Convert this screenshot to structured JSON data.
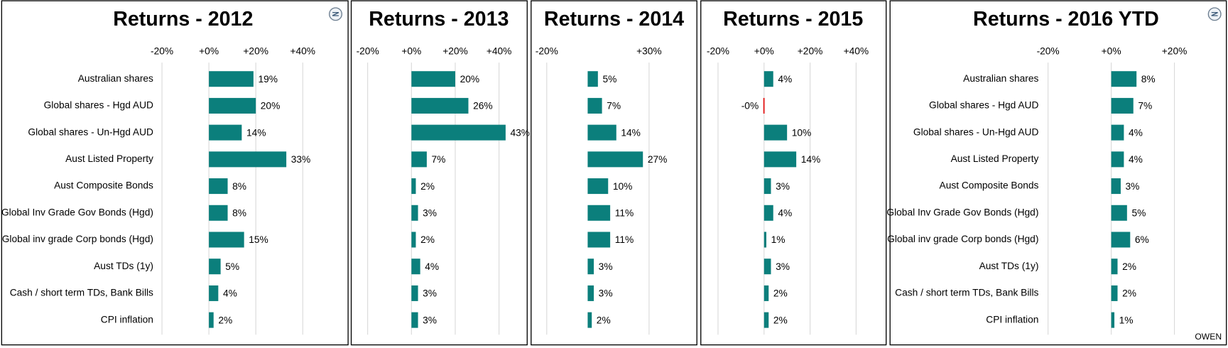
{
  "chart_data": [
    {
      "type": "bar",
      "title": "Returns - 2012",
      "color": "#0b7f7c",
      "negative_color": "#e00000",
      "grid": true,
      "categories": [
        "Australian shares",
        "Global shares - Hgd AUD",
        "Global shares - Un-Hgd AUD",
        "Aust Listed Property",
        "Aust Composite Bonds",
        "Global Inv Grade Gov Bonds (Hgd)",
        "Global inv grade Corp bonds (Hgd)",
        "Aust TDs (1y)",
        "Cash / short term TDs, Bank Bills",
        "CPI inflation"
      ],
      "values": [
        19,
        20,
        14,
        33,
        8,
        8,
        15,
        5,
        4,
        2
      ],
      "value_labels": [
        "19%",
        "20%",
        "14%",
        "33%",
        "8%",
        "8%",
        "15%",
        "5%",
        "4%",
        "2%"
      ],
      "xlim": [
        -20,
        50
      ],
      "xticks": [
        {
          "value": -20,
          "label": "-20%"
        },
        {
          "value": 0,
          "label": "+0%"
        },
        {
          "value": 20,
          "label": "+20%"
        },
        {
          "value": 40,
          "label": "+40%"
        }
      ]
    },
    {
      "type": "bar",
      "title": "Returns - 2013",
      "color": "#0b7f7c",
      "negative_color": "#e00000",
      "grid": true,
      "values": [
        20,
        26,
        43,
        7,
        2,
        3,
        2,
        4,
        3,
        3
      ],
      "value_labels": [
        "20%",
        "26%",
        "43%",
        "7%",
        "2%",
        "3%",
        "2%",
        "4%",
        "3%",
        "3%"
      ],
      "xlim": [
        -20,
        50
      ],
      "xticks": [
        {
          "value": -20,
          "label": "-20%"
        },
        {
          "value": 0,
          "label": "+0%"
        },
        {
          "value": 20,
          "label": "+20%"
        },
        {
          "value": 40,
          "label": "+40%"
        }
      ]
    },
    {
      "type": "bar",
      "title": "Returns - 2014",
      "color": "#0b7f7c",
      "negative_color": "#e00000",
      "grid": true,
      "values": [
        5,
        7,
        14,
        27,
        10,
        11,
        11,
        3,
        3,
        2
      ],
      "value_labels": [
        "5%",
        "7%",
        "14%",
        "27%",
        "10%",
        "11%",
        "11%",
        "3%",
        "3%",
        "2%"
      ],
      "xlim": [
        -20,
        40
      ],
      "xticks": [
        {
          "value": -20,
          "label": "-20%"
        },
        {
          "value": 30,
          "label": "+30%"
        }
      ]
    },
    {
      "type": "bar",
      "title": "Returns - 2015",
      "color": "#0b7f7c",
      "negative_color": "#e00000",
      "grid": true,
      "values": [
        4,
        -0.3,
        10,
        14,
        3,
        4,
        1,
        3,
        2,
        2
      ],
      "value_labels": [
        "4%",
        "-0%",
        "10%",
        "14%",
        "3%",
        "4%",
        "1%",
        "3%",
        "2%",
        "2%"
      ],
      "xlim": [
        -20,
        50
      ],
      "xticks": [
        {
          "value": -20,
          "label": "-20%"
        },
        {
          "value": 0,
          "label": "+0%"
        },
        {
          "value": 20,
          "label": "+20%"
        },
        {
          "value": 40,
          "label": "+40%"
        }
      ]
    },
    {
      "type": "bar",
      "title": "Returns - 2016 YTD",
      "color": "#0b7f7c",
      "negative_color": "#e00000",
      "grid": true,
      "categories": [
        "Australian shares",
        "Global shares - Hgd AUD",
        "Global shares - Un-Hgd AUD",
        "Aust Listed Property",
        "Aust Composite Bonds",
        "Global Inv Grade Gov Bonds (Hgd)",
        "Global inv grade Corp bonds (Hgd)",
        "Aust TDs (1y)",
        "Cash / short term TDs, Bank Bills",
        "CPI inflation"
      ],
      "values": [
        8,
        7,
        4,
        4,
        3,
        5,
        6,
        2,
        2,
        1
      ],
      "value_labels": [
        "8%",
        "7%",
        "4%",
        "4%",
        "3%",
        "5%",
        "6%",
        "2%",
        "2%",
        "1%"
      ],
      "xlim": [
        -20,
        30
      ],
      "xticks": [
        {
          "value": -20,
          "label": "-20%"
        },
        {
          "value": 0,
          "label": "+0%"
        },
        {
          "value": 20,
          "label": "+20%"
        }
      ],
      "annotation": "OWEN"
    }
  ]
}
